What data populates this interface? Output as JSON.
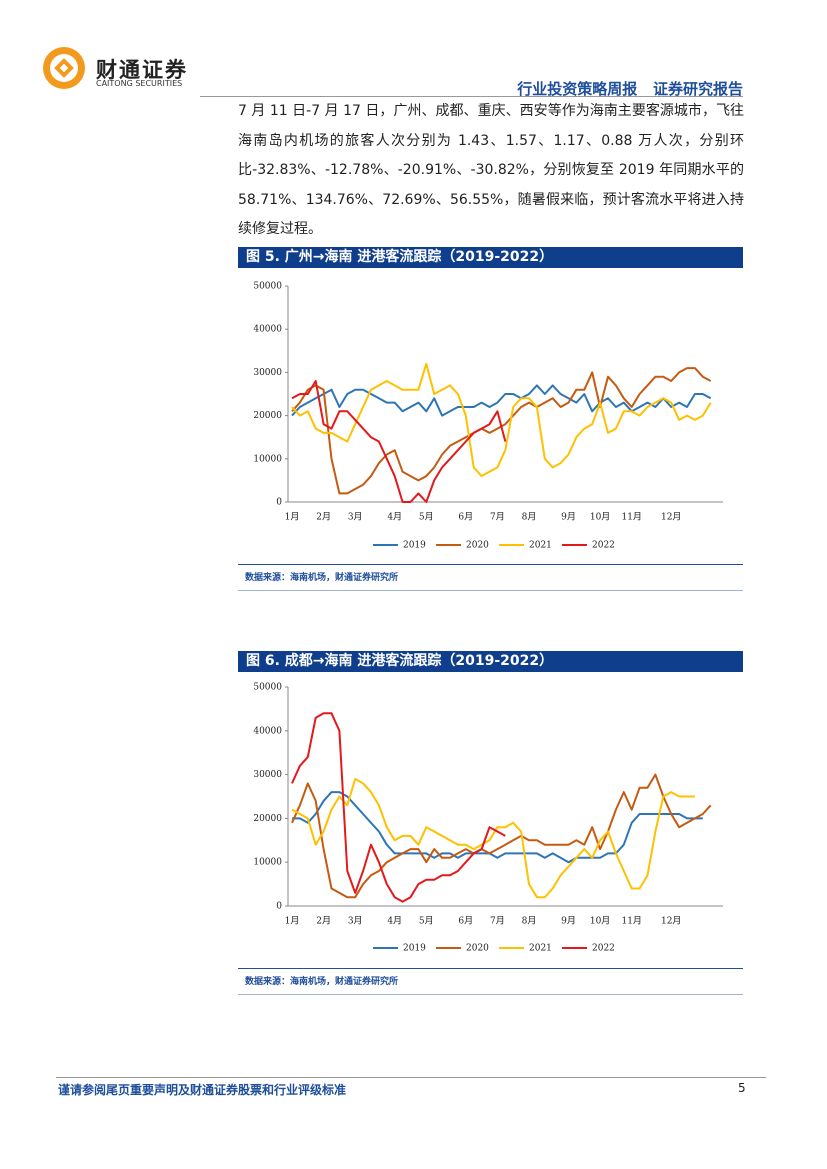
{
  "header": {
    "company": "财通证券",
    "company_en": "CAITONG SECURITIES",
    "report_type": "行业投资策略周报",
    "report_label": "证券研究报告"
  },
  "paragraph": "7 月 11 日-7 月 17 日，广州、成都、重庆、西安等作为海南主要客源城市，飞往海南岛内机场的旅客人次分别为 1.43、1.57、1.17、0.88 万人次，分别环比-32.83%、-12.78%、-20.91%、-30.82%，分别恢复至 2019 年同期水平的 58.71%、134.76%、72.69%、56.55%，随暑假来临，预计客流水平将进入持续修复过程。",
  "chart_data": [
    {
      "type": "line",
      "title": "图 5. 广州→海南 进港客流跟踪（2019-2022）",
      "source": "数据来源：海南机场，财通证券研究所",
      "categories": [
        "1月",
        null,
        null,
        null,
        "2月",
        null,
        null,
        null,
        "3月",
        null,
        null,
        null,
        null,
        "4月",
        null,
        null,
        null,
        "5月",
        null,
        null,
        null,
        null,
        "6月",
        null,
        null,
        null,
        "7月",
        null,
        null,
        null,
        "8月",
        null,
        null,
        null,
        null,
        "9月",
        null,
        null,
        null,
        "10月",
        null,
        null,
        null,
        "11月",
        null,
        null,
        null,
        null,
        "12月",
        null,
        null,
        null,
        null,
        null
      ],
      "ylim": [
        0,
        50000
      ],
      "yticks": [
        0,
        10000,
        20000,
        30000,
        40000,
        50000
      ],
      "series": [
        {
          "name": "2019",
          "color": "#2e75b6",
          "values": [
            20000,
            22000,
            23000,
            24000,
            25000,
            26000,
            22000,
            25000,
            26000,
            26000,
            25000,
            24000,
            23000,
            23000,
            21000,
            22000,
            23000,
            21000,
            24000,
            20000,
            21000,
            22000,
            22000,
            22000,
            23000,
            22000,
            23000,
            25000,
            25000,
            24000,
            25000,
            27000,
            25000,
            27000,
            25000,
            24000,
            23000,
            25000,
            21000,
            23000,
            24000,
            22000,
            23000,
            21000,
            22000,
            23000,
            22000,
            24000,
            22000,
            23000,
            22000,
            25000,
            25000,
            24000
          ]
        },
        {
          "name": "2020",
          "color": "#c55a11",
          "values": [
            21000,
            23000,
            26000,
            27000,
            26000,
            10000,
            2000,
            2000,
            3000,
            4000,
            6000,
            9000,
            11000,
            12000,
            7000,
            6000,
            5000,
            6000,
            8000,
            11000,
            13000,
            14000,
            15000,
            16000,
            17000,
            16000,
            17000,
            18000,
            20000,
            22000,
            23000,
            22000,
            23000,
            24000,
            22000,
            23000,
            26000,
            26000,
            30000,
            22000,
            29000,
            27000,
            24000,
            22000,
            25000,
            27000,
            29000,
            29000,
            28000,
            30000,
            31000,
            31000,
            29000,
            28000
          ]
        },
        {
          "name": "2021",
          "color": "#ffc000",
          "values": [
            22000,
            20000,
            21000,
            17000,
            16000,
            16000,
            15000,
            14000,
            18000,
            22000,
            26000,
            27000,
            28000,
            27000,
            26000,
            26000,
            26000,
            32000,
            25000,
            26000,
            27000,
            25000,
            20000,
            8000,
            6000,
            7000,
            8000,
            12000,
            22000,
            24000,
            24000,
            22000,
            10000,
            8000,
            9000,
            11000,
            15000,
            17000,
            18000,
            23000,
            16000,
            17000,
            21000,
            21000,
            20000,
            22000,
            23000,
            24000,
            23000,
            19000,
            20000,
            19000,
            20000,
            23000
          ]
        },
        {
          "name": "2022",
          "color": "#e3191c",
          "values": [
            24000,
            25000,
            25000,
            28000,
            18000,
            17000,
            21000,
            21000,
            19000,
            17000,
            15000,
            14000,
            10000,
            6000,
            0,
            0,
            2000,
            0,
            5000,
            8000,
            10000,
            12000,
            14000,
            16000,
            17000,
            18000,
            21000,
            14000,
            null,
            null,
            null,
            null,
            null,
            null,
            null,
            null,
            null,
            null,
            null,
            null,
            null,
            null,
            null,
            null,
            null,
            null,
            null,
            null,
            null,
            null,
            null,
            null,
            null,
            null
          ]
        }
      ]
    },
    {
      "type": "line",
      "title": "图 6. 成都→海南 进港客流跟踪（2019-2022）",
      "source": "数据来源：海南机场，财通证券研究所",
      "categories": [
        "1月",
        null,
        null,
        null,
        "2月",
        null,
        null,
        null,
        "3月",
        null,
        null,
        null,
        null,
        "4月",
        null,
        null,
        null,
        "5月",
        null,
        null,
        null,
        null,
        "6月",
        null,
        null,
        null,
        "7月",
        null,
        null,
        null,
        "8月",
        null,
        null,
        null,
        null,
        "9月",
        null,
        null,
        null,
        "10月",
        null,
        null,
        null,
        "11月",
        null,
        null,
        null,
        null,
        "12月",
        null,
        null,
        null,
        null,
        null
      ],
      "ylim": [
        0,
        50000
      ],
      "yticks": [
        0,
        10000,
        20000,
        30000,
        40000,
        50000
      ],
      "series": [
        {
          "name": "2019",
          "color": "#2e75b6",
          "values": [
            20000,
            20000,
            19000,
            21000,
            24000,
            26000,
            26000,
            25000,
            23000,
            21000,
            19000,
            17000,
            14000,
            12000,
            12000,
            12000,
            12000,
            12000,
            11000,
            12000,
            12000,
            11000,
            12000,
            12000,
            12000,
            12000,
            11000,
            12000,
            12000,
            12000,
            12000,
            12000,
            11000,
            12000,
            11000,
            10000,
            11000,
            11000,
            11000,
            11000,
            12000,
            12000,
            14000,
            19000,
            21000,
            21000,
            21000,
            21000,
            21000,
            21000,
            20000,
            20000,
            20000,
            null
          ]
        },
        {
          "name": "2020",
          "color": "#c55a11",
          "values": [
            19000,
            23000,
            28000,
            24000,
            13000,
            4000,
            3000,
            2000,
            2000,
            5000,
            7000,
            8000,
            10000,
            11000,
            12000,
            13000,
            13000,
            10000,
            13000,
            11000,
            11000,
            12000,
            13000,
            12000,
            13000,
            12000,
            13000,
            14000,
            15000,
            16000,
            15000,
            15000,
            14000,
            14000,
            14000,
            14000,
            15000,
            14000,
            18000,
            13000,
            17000,
            22000,
            26000,
            22000,
            27000,
            27000,
            30000,
            25000,
            21000,
            18000,
            19000,
            20000,
            21000,
            23000
          ]
        },
        {
          "name": "2021",
          "color": "#ffc000",
          "values": [
            22000,
            21000,
            20000,
            14000,
            17000,
            22000,
            25000,
            23000,
            29000,
            28000,
            26000,
            23000,
            18000,
            15000,
            16000,
            16000,
            14000,
            18000,
            17000,
            16000,
            15000,
            14000,
            14000,
            13000,
            14000,
            15000,
            18000,
            18000,
            19000,
            17000,
            5000,
            2000,
            2000,
            4000,
            7000,
            9000,
            11000,
            13000,
            11000,
            15000,
            17000,
            12000,
            8000,
            4000,
            4000,
            7000,
            17000,
            25000,
            26000,
            25000,
            25000,
            25000,
            null,
            null
          ]
        },
        {
          "name": "2022",
          "color": "#e3191c",
          "values": [
            28000,
            32000,
            34000,
            43000,
            44000,
            44000,
            40000,
            8000,
            3000,
            8000,
            14000,
            10000,
            5000,
            2000,
            1000,
            2000,
            5000,
            6000,
            6000,
            7000,
            7000,
            8000,
            10000,
            12000,
            13000,
            18000,
            17000,
            16000,
            null,
            null,
            null,
            null,
            null,
            null,
            null,
            null,
            null,
            null,
            null,
            null,
            null,
            null,
            null,
            null,
            null,
            null,
            null,
            null,
            null,
            null,
            null,
            null,
            null,
            null
          ]
        }
      ]
    }
  ],
  "footer": {
    "disclaimer": "谨请参阅尾页重要声明及财通证券股票和行业评级标准",
    "page": 5
  }
}
